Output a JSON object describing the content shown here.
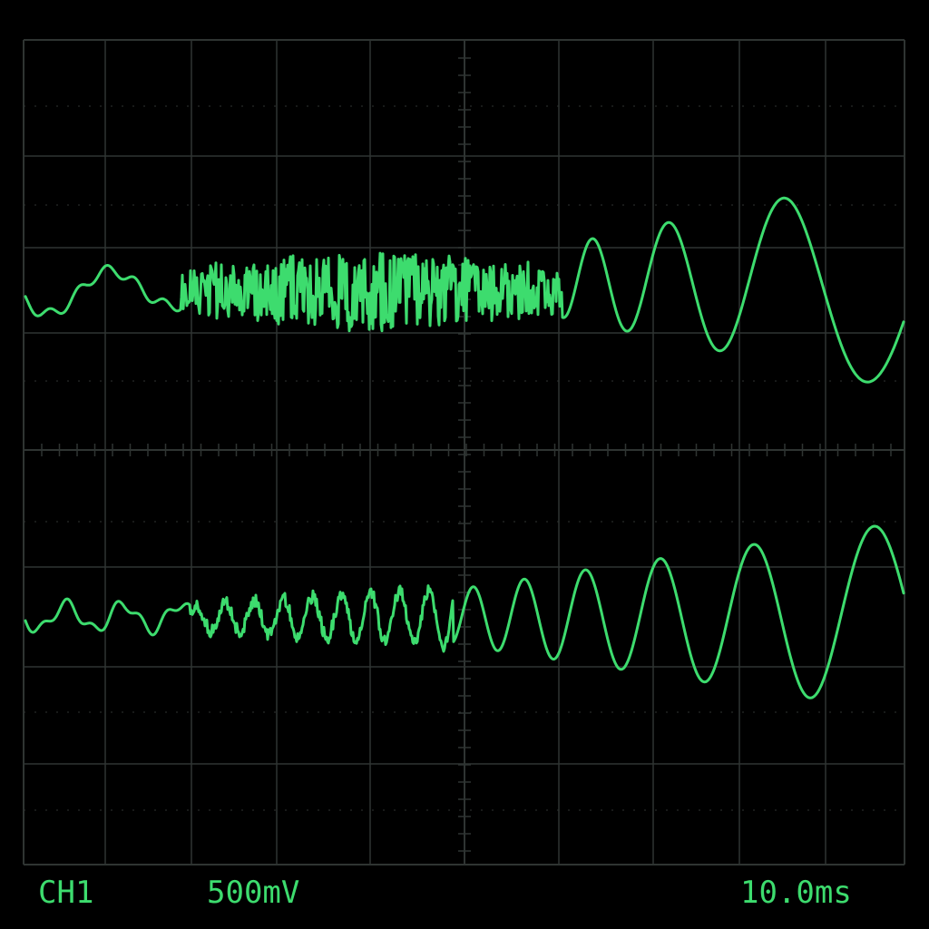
{
  "screen": {
    "background_color": "#000000",
    "grid_color": "#2f3432",
    "trace_color": "#3ddc6e",
    "grid": true
  },
  "readouts": {
    "channel": "CH1",
    "volts_per_div": "500mV",
    "time_per_div": "10.0ms"
  },
  "traces": [
    {
      "id": "upper-trace",
      "description_of_shape": "chirp: low-frequency start, dense noisy middle, large growing oscillations at right",
      "amplitude_profile": "grows toward the right"
    },
    {
      "id": "lower-trace",
      "description_of_shape": "chirp: small irregular wiggles at left, growing smooth oscillations to the right",
      "amplitude_profile": "grows toward the right"
    }
  ]
}
